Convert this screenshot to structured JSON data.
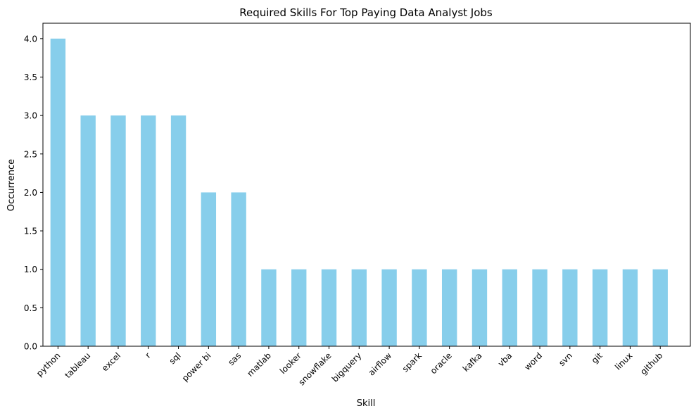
{
  "chart_data": {
    "type": "bar",
    "title": "Required Skills For Top Paying Data Analyst Jobs",
    "xlabel": "Skill",
    "ylabel": "Occurrence",
    "ylim": [
      0,
      4.2
    ],
    "yticks": [
      "0.0",
      "0.5",
      "1.0",
      "1.5",
      "2.0",
      "2.5",
      "3.0",
      "3.5",
      "4.0"
    ],
    "ytick_values": [
      0,
      0.5,
      1.0,
      1.5,
      2.0,
      2.5,
      3.0,
      3.5,
      4.0
    ],
    "grid": false,
    "legend": "none",
    "bar_color": "#87ceeb",
    "categories": [
      "python",
      "tableau",
      "excel",
      "r",
      "sql",
      "power bi",
      "sas",
      "matlab",
      "looker",
      "snowflake",
      "bigquery",
      "airflow",
      "spark",
      "oracle",
      "kafka",
      "vba",
      "word",
      "svn",
      "git",
      "linux",
      "github"
    ],
    "values": [
      4,
      3,
      3,
      3,
      3,
      2,
      2,
      1,
      1,
      1,
      1,
      1,
      1,
      1,
      1,
      1,
      1,
      1,
      1,
      1,
      1
    ]
  }
}
